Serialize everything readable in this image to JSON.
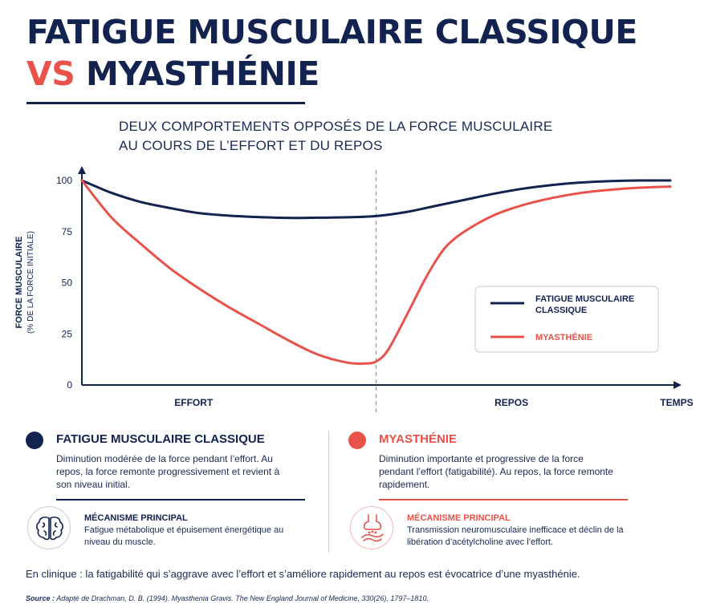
{
  "title": {
    "line1": "FATIGUE MUSCULAIRE CLASSIQUE",
    "vs": "VS",
    "line2": "MYASTHÉNIE"
  },
  "subtitle": {
    "line1": "DEUX COMPORTEMENTS OPPOSÉS DE LA FORCE MUSCULAIRE",
    "line2": "AU COURS DE L’EFFORT ET DU REPOS"
  },
  "colors": {
    "navy": "#13234f",
    "red": "#e9524a",
    "divider": "#9a9ca3"
  },
  "chart_data": {
    "type": "line",
    "ylabel_line1": "FORCE MUSCULAIRE",
    "ylabel_line2": "(% DE LA FORCE INITIALE)",
    "xlabel": "TEMPS",
    "phase_labels": [
      "EFFORT",
      "REPOS"
    ],
    "phase_boundary": 50,
    "xlim": [
      0,
      100
    ],
    "ylim": [
      0,
      100
    ],
    "yticks": [
      0,
      25,
      50,
      75,
      100
    ],
    "series": [
      {
        "name": "FATIGUE MUSCULAIRE CLASSIQUE",
        "color": "#13234f",
        "x": [
          0,
          5,
          10,
          15,
          20,
          25,
          30,
          35,
          40,
          45,
          50,
          55,
          60,
          65,
          70,
          75,
          80,
          85,
          90,
          95,
          100
        ],
        "y": [
          100,
          94,
          89.5,
          86.5,
          84,
          82.8,
          82.1,
          81.7,
          81.8,
          82,
          82.6,
          84.5,
          87.5,
          90.5,
          93.5,
          96,
          97.8,
          99,
          99.7,
          100,
          100
        ]
      },
      {
        "name": "MYASTHÉNIE",
        "color": "#e9524a",
        "x": [
          0,
          5,
          10,
          15,
          20,
          25,
          30,
          35,
          40,
          45,
          48,
          50,
          52,
          55,
          58,
          60,
          62,
          65,
          70,
          75,
          80,
          85,
          90,
          95,
          100
        ],
        "y": [
          100,
          82,
          69,
          57,
          47,
          38,
          30,
          22,
          15,
          11,
          10.5,
          11.5,
          17,
          33,
          50,
          60,
          68,
          75,
          83,
          88,
          91.5,
          94,
          95.5,
          96.5,
          97
        ]
      }
    ],
    "legend": "right"
  },
  "panels": {
    "classic": {
      "title": "FATIGUE MUSCULAIRE CLASSIQUE",
      "text": "Diminution modérée de la force pendant l’effort. Au repos, la force remonte progressivement et revient à son niveau initial.",
      "mechanism_title": "MÉCANISME PRINCIPAL",
      "mechanism_text": "Fatigue métabolique et épuisement énergétique au niveau du muscle.",
      "icon": "brain-icon"
    },
    "myasthenia": {
      "title": "MYASTHÉNIE",
      "text": "Diminution importante et progressive de la force pendant l’effort (fatigabilité). Au repos, la force remonte rapidement.",
      "mechanism_title": "MÉCANISME PRINCIPAL",
      "mechanism_text": "Transmission neuromusculaire inefficace et déclin de la libération d’acétylcholine avec l’effort.",
      "icon": "synapse-icon"
    }
  },
  "clinic": "En clinique : la fatigabilité qui s’aggrave avec l’effort et s’améliore rapidement au repos est évocatrice d’une myasthénie.",
  "source": {
    "label": "Source :",
    "text": "Adapté de Drachman, D. B. (1994). Myasthenia Gravis. The New England Journal of Medicine, 330(26), 1797–1810."
  }
}
